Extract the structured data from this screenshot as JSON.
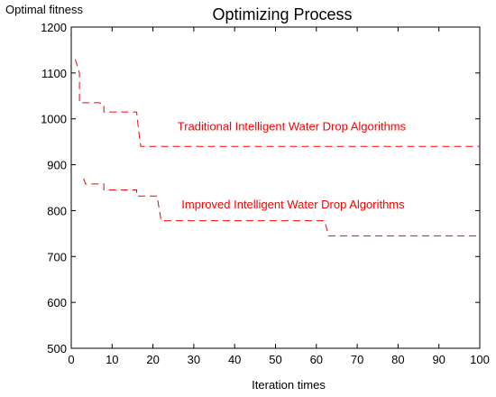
{
  "chart_data": {
    "type": "line",
    "title": "Optimizing Process",
    "xlabel": "Iteration times",
    "ylabel": "Optimal fitness",
    "xlim": [
      0,
      100
    ],
    "ylim": [
      500,
      1200
    ],
    "xticks": [
      0,
      10,
      20,
      30,
      40,
      50,
      60,
      70,
      80,
      90,
      100
    ],
    "yticks": [
      500,
      600,
      700,
      800,
      900,
      1000,
      1100,
      1200
    ],
    "grid": false,
    "line_style": "dashed",
    "color": "#ff0000",
    "series": [
      {
        "annotation": "Traditional Intelligent Water Drop Algorithms",
        "x": [
          1,
          2,
          2,
          7,
          7.5,
          8,
          8,
          16,
          16.5,
          17,
          17,
          100
        ],
        "y": [
          1130,
          1100,
          1035,
          1035,
          1030,
          1030,
          1015,
          1015,
          975,
          940,
          940,
          940
        ]
      },
      {
        "annotation": "Improved Intelligent Water Drop Algorithms",
        "x": [
          3,
          3.5,
          8,
          8,
          16,
          16,
          21,
          21,
          22,
          62,
          62,
          63,
          100
        ],
        "y": [
          870,
          858,
          858,
          845,
          845,
          832,
          832,
          832,
          778,
          778,
          778,
          745,
          745
        ]
      }
    ],
    "annotations": [
      {
        "text": "Traditional Intelligent Water Drop Algorithms",
        "x": 26,
        "y": 975
      },
      {
        "text": "Improved Intelligent Water Drop Algorithms",
        "x": 27,
        "y": 805
      }
    ]
  }
}
